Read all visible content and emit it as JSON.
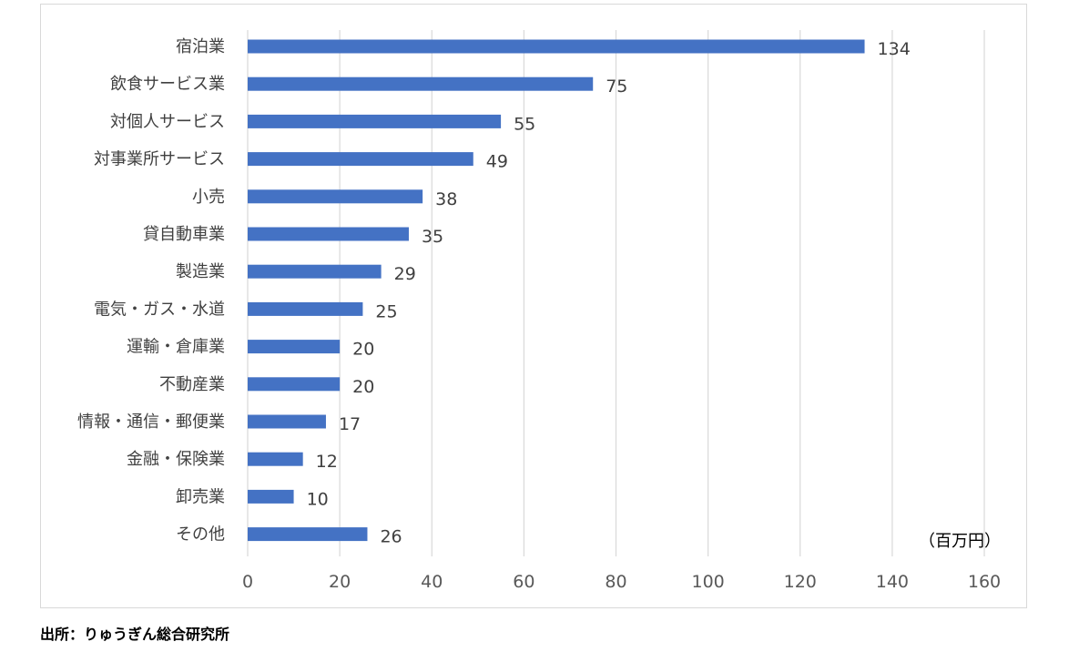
{
  "chart_data": {
    "type": "bar",
    "orientation": "horizontal",
    "categories": [
      "宿泊業",
      "飲食サービス業",
      "対個人サービス",
      "対事業所サービス",
      "小売",
      "貸自動車業",
      "製造業",
      "電気・ガス・水道",
      "運輸・倉庫業",
      "不動産業",
      "情報・通信・郵便業",
      "金融・保険業",
      "卸売業",
      "その他"
    ],
    "values": [
      134,
      75,
      55,
      49,
      38,
      35,
      29,
      25,
      20,
      20,
      17,
      12,
      10,
      26
    ],
    "data_labels": [
      "134",
      "75",
      "55",
      "49",
      "38",
      "35",
      "29",
      "25",
      "20",
      "20",
      "17",
      "12",
      "10",
      "26"
    ],
    "xlim": [
      0,
      160
    ],
    "x_ticks": [
      0,
      20,
      40,
      60,
      80,
      100,
      120,
      140,
      160
    ],
    "x_tick_labels": [
      "0",
      "20",
      "40",
      "60",
      "80",
      "100",
      "120",
      "140",
      "160"
    ],
    "unit_label": "（百万円）",
    "grid": true,
    "bar_color": "#4472c4",
    "grid_color": "#d9d9d9"
  },
  "source": "出所：りゅうぎん総合研究所"
}
